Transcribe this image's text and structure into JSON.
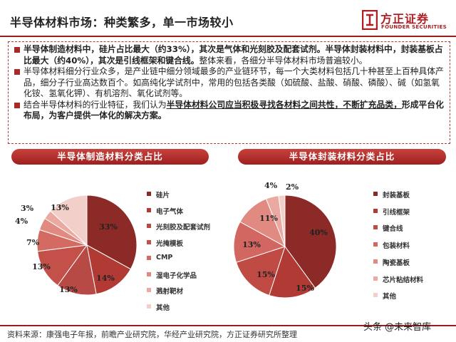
{
  "header": {
    "title": "半导体材料市场：种类繁多，单一市场较小",
    "logo_cn": "方正证券",
    "logo_en": "FOUNDER SECURITIES"
  },
  "summary": {
    "p1_b1": "半导体制造材料中，硅片占比最大（约33%），其次是气体和光刻胶及配套试剂。",
    "p1_b2": "半导体封装材料中，封装基板占比最大（约40%），其次是引线框架和键合线。",
    "p1_n1": "整体来看，各细分半导体材料市场普遍较小。",
    "p2": "半导体材料细分行业众多，是产业链中细分领域最多的产业链环节，每一个大类材料包括几十种甚至上百种具体产品，细分子行业高达数百个。如高纯化学试剂中，常用的包括各类酸（如硫酸、盐酸、硝酸、磷酸）、碱（如氢氧化铵、氢氧化钾）、有机溶剂、氧化试剂等。",
    "p3_n1": "结合半导体材料的行业特征，我们认为",
    "p3_bu": "半导体材料公司应当积极寻找各材料之间共性，不断扩充品类，",
    "p3_b": "形成平台化布局，为客户提供一体化的解决方案。"
  },
  "footer": {
    "source": "资料来源：康强电子年报，前瞻产业研究院，华经产业研究院，方正证券研究所整理",
    "watermark": "头条 @未来智库"
  },
  "chart_data": [
    {
      "type": "pie",
      "title": "半导体制造材料分类占比",
      "unit": "%",
      "legend_position": "right",
      "slices": [
        {
          "label": "硅片",
          "value": 33,
          "color": "#8b2a26"
        },
        {
          "label": "电子气体",
          "value": 14,
          "color": "#b23a34"
        },
        {
          "label": "光刻胶及配套试剂",
          "value": 13,
          "color": "#b84a45"
        },
        {
          "label": "光掩模板",
          "value": 13,
          "color": "#c4504a"
        },
        {
          "label": "CMP",
          "value": 7,
          "color": "#d46b62"
        },
        {
          "label": "湿电子化学品",
          "value": 4,
          "color": "#e08a82"
        },
        {
          "label": "溅射靶材",
          "value": 3,
          "color": "#eaaaa2"
        },
        {
          "label": "其他",
          "value": 13,
          "color": "#f3cfc9"
        }
      ]
    },
    {
      "type": "pie",
      "title": "半导体封装材料分类占比",
      "unit": "%",
      "legend_position": "right",
      "slices": [
        {
          "label": "封装基板",
          "value": 40,
          "color": "#8b2a26"
        },
        {
          "label": "引线框架",
          "value": 15,
          "color": "#b23a34"
        },
        {
          "label": "键合线",
          "value": 15,
          "color": "#c04a44"
        },
        {
          "label": "包装材料",
          "value": 13,
          "color": "#d26660"
        },
        {
          "label": "陶瓷基板",
          "value": 11,
          "color": "#e08a82"
        },
        {
          "label": "芯片粘结材料",
          "value": 4,
          "color": "#eaaaa2"
        },
        {
          "label": "其他",
          "value": 2,
          "color": "#f3cfc9"
        }
      ]
    }
  ]
}
